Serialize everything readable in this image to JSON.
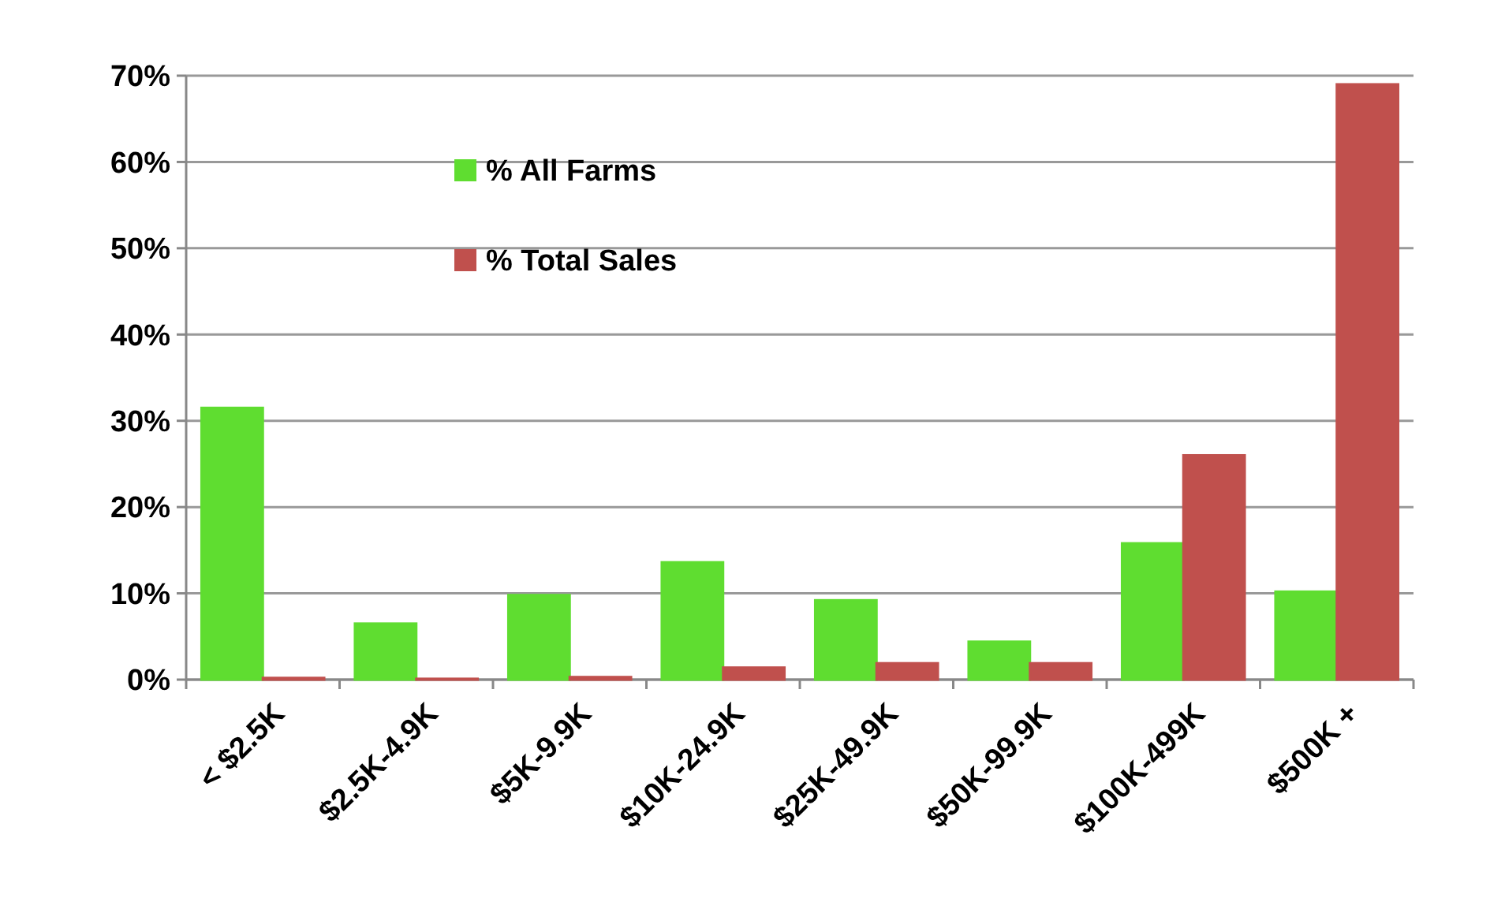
{
  "chart_data": {
    "type": "bar",
    "categories": [
      "< $2.5K",
      "$2.5K-4.9K",
      "$5K-9.9K",
      "$10K-24.9K",
      "$25K-49.9K",
      "$50K-99.9K",
      "$100K-499K",
      "$500K +"
    ],
    "series": [
      {
        "name": "% All Farms",
        "color": "#5fdd30",
        "values": [
          31.5,
          6.5,
          9.8,
          13.6,
          9.2,
          4.4,
          15.8,
          10.2
        ]
      },
      {
        "name": "% Total Sales",
        "color": "#c0504d",
        "values": [
          0.2,
          0.1,
          0.3,
          1.4,
          1.9,
          1.9,
          26,
          69
        ]
      }
    ],
    "ylim": [
      0,
      70
    ],
    "yticks": [
      {
        "value": 0,
        "label": "0%"
      },
      {
        "value": 10,
        "label": "10%"
      },
      {
        "value": 20,
        "label": "20%"
      },
      {
        "value": 30,
        "label": "30%"
      },
      {
        "value": 40,
        "label": "40%"
      },
      {
        "value": 50,
        "label": "50%"
      },
      {
        "value": 60,
        "label": "60%"
      },
      {
        "value": 70,
        "label": "70%"
      }
    ],
    "grid": "y",
    "legend": "top left"
  }
}
